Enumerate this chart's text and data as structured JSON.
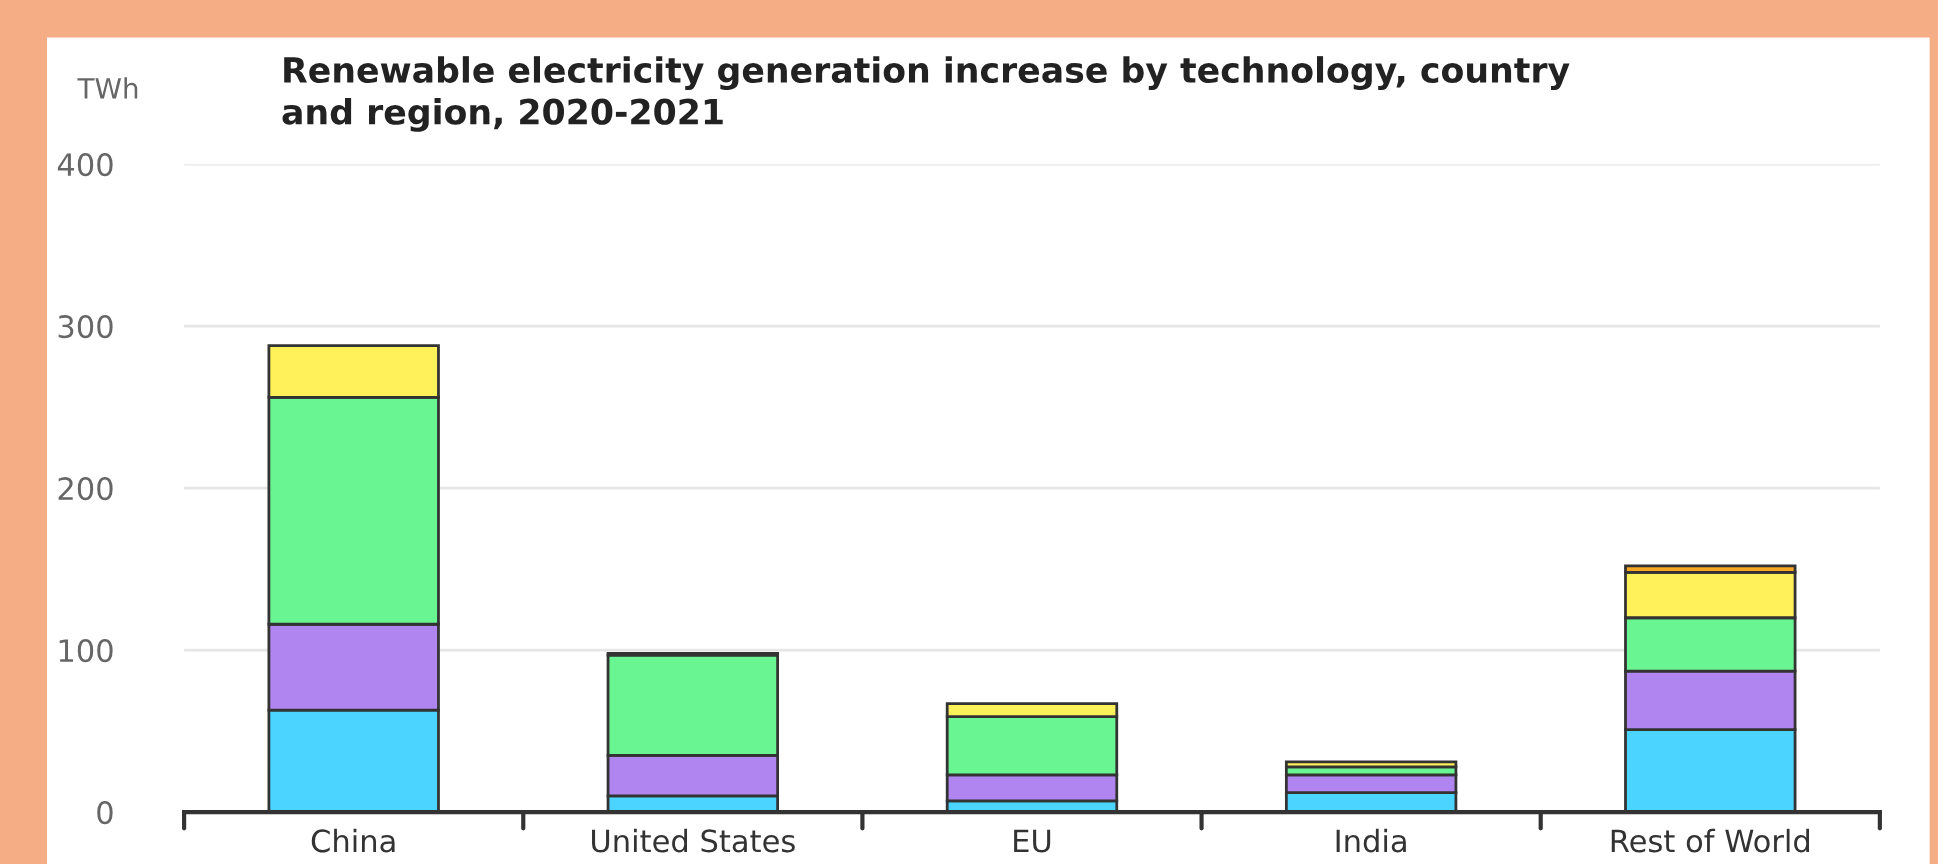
{
  "chart_data": {
    "type": "bar",
    "title": "Renewable electricity generation increase by technology, country\nand region, 2020-2021",
    "ylabel": "TWh",
    "categories": [
      "China",
      "United States",
      "EU",
      "India",
      "Rest of World"
    ],
    "stacked": true,
    "series": [
      {
        "color": "#4ad4ff",
        "values": [
          63,
          10,
          7,
          12,
          51
        ]
      },
      {
        "color": "#b085ef",
        "values": [
          53,
          25,
          16,
          11,
          36
        ]
      },
      {
        "color": "#69f592",
        "values": [
          140,
          62,
          36,
          5,
          33
        ]
      },
      {
        "color": "#fff15a",
        "values": [
          32,
          1,
          8,
          3,
          28
        ]
      },
      {
        "color": "#f5a623",
        "values": [
          null,
          null,
          null,
          null,
          4
        ]
      }
    ],
    "ylim": [
      0,
      400
    ],
    "yticks": [
      0,
      100,
      200,
      300,
      400
    ],
    "grid": "y"
  }
}
